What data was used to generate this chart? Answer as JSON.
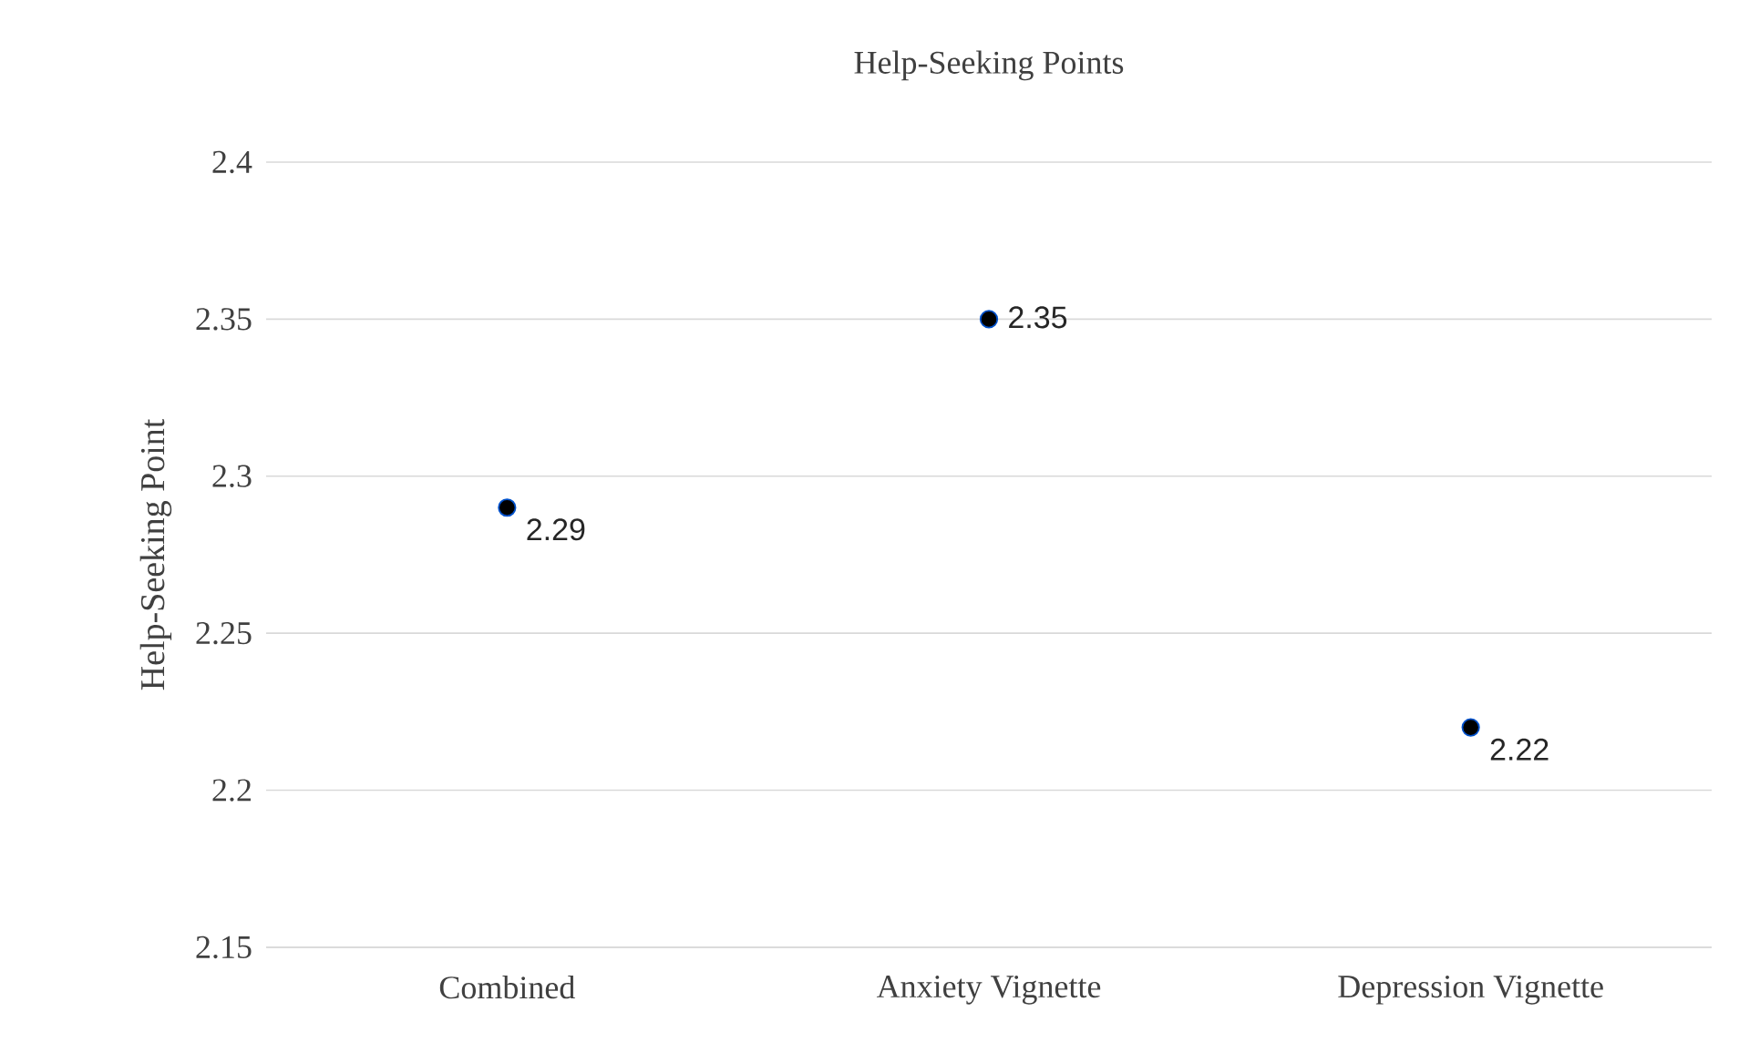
{
  "chart_data": {
    "type": "scatter",
    "title": "Help-Seeking Points",
    "ylabel": "Help-Seeking Point",
    "categories": [
      "Combined",
      "Anxiety Vignette",
      "Depression Vignette"
    ],
    "values": [
      2.29,
      2.35,
      2.22
    ],
    "color": "#000000",
    "marker": "circle",
    "data_labels": true,
    "ylim": [
      2.15,
      2.4
    ],
    "yticks": [
      2.15,
      2.2,
      2.25,
      2.3,
      2.35,
      2.4
    ],
    "grid": "y"
  }
}
